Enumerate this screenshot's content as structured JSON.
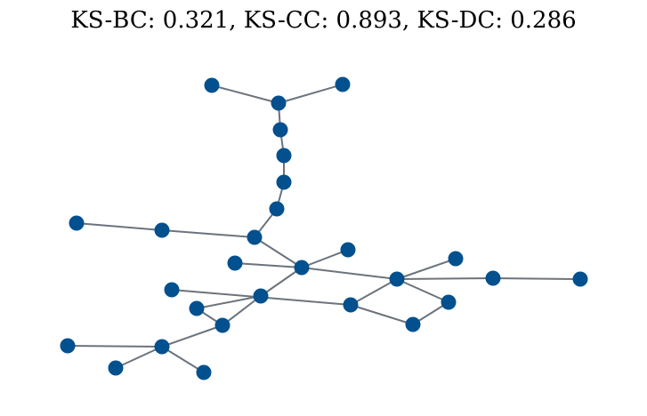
{
  "title": "KS-BC: 0.321, KS-CC: 0.893, KS-DC: 0.286",
  "colors": {
    "node_fill": "#03508f",
    "edge_stroke": "#6b737c",
    "background": "#ffffff"
  },
  "graph": {
    "nodes": [
      "n0",
      "n1",
      "n2",
      "n3",
      "n4",
      "n5",
      "n6",
      "n7",
      "n8",
      "n9",
      "n10",
      "n11",
      "n12",
      "n13",
      "n14",
      "n15",
      "n16",
      "n17",
      "n18",
      "n19",
      "n20",
      "n21",
      "n22",
      "n23",
      "n24",
      "n25",
      "n26",
      "n27",
      "n28"
    ],
    "edges": [
      [
        "n0",
        "n2"
      ],
      [
        "n1",
        "n2"
      ],
      [
        "n2",
        "n3"
      ],
      [
        "n3",
        "n4"
      ],
      [
        "n4",
        "n5"
      ],
      [
        "n5",
        "n6"
      ],
      [
        "n6",
        "n9"
      ],
      [
        "n7",
        "n8"
      ],
      [
        "n8",
        "n9"
      ],
      [
        "n9",
        "n12"
      ],
      [
        "n10",
        "n12"
      ],
      [
        "n11",
        "n12"
      ],
      [
        "n12",
        "n13"
      ],
      [
        "n12",
        "n16"
      ],
      [
        "n13",
        "n14"
      ],
      [
        "n13",
        "n15"
      ],
      [
        "n13",
        "n18"
      ],
      [
        "n13",
        "n21"
      ],
      [
        "n21",
        "n22"
      ],
      [
        "n22",
        "n20"
      ],
      [
        "n16",
        "n17"
      ],
      [
        "n16",
        "n19"
      ],
      [
        "n17",
        "n20"
      ],
      [
        "n16",
        "n23"
      ],
      [
        "n23",
        "n24"
      ],
      [
        "n24",
        "n25"
      ],
      [
        "n24",
        "n26"
      ],
      [
        "n26",
        "n27"
      ],
      [
        "n26",
        "n28"
      ]
    ]
  }
}
